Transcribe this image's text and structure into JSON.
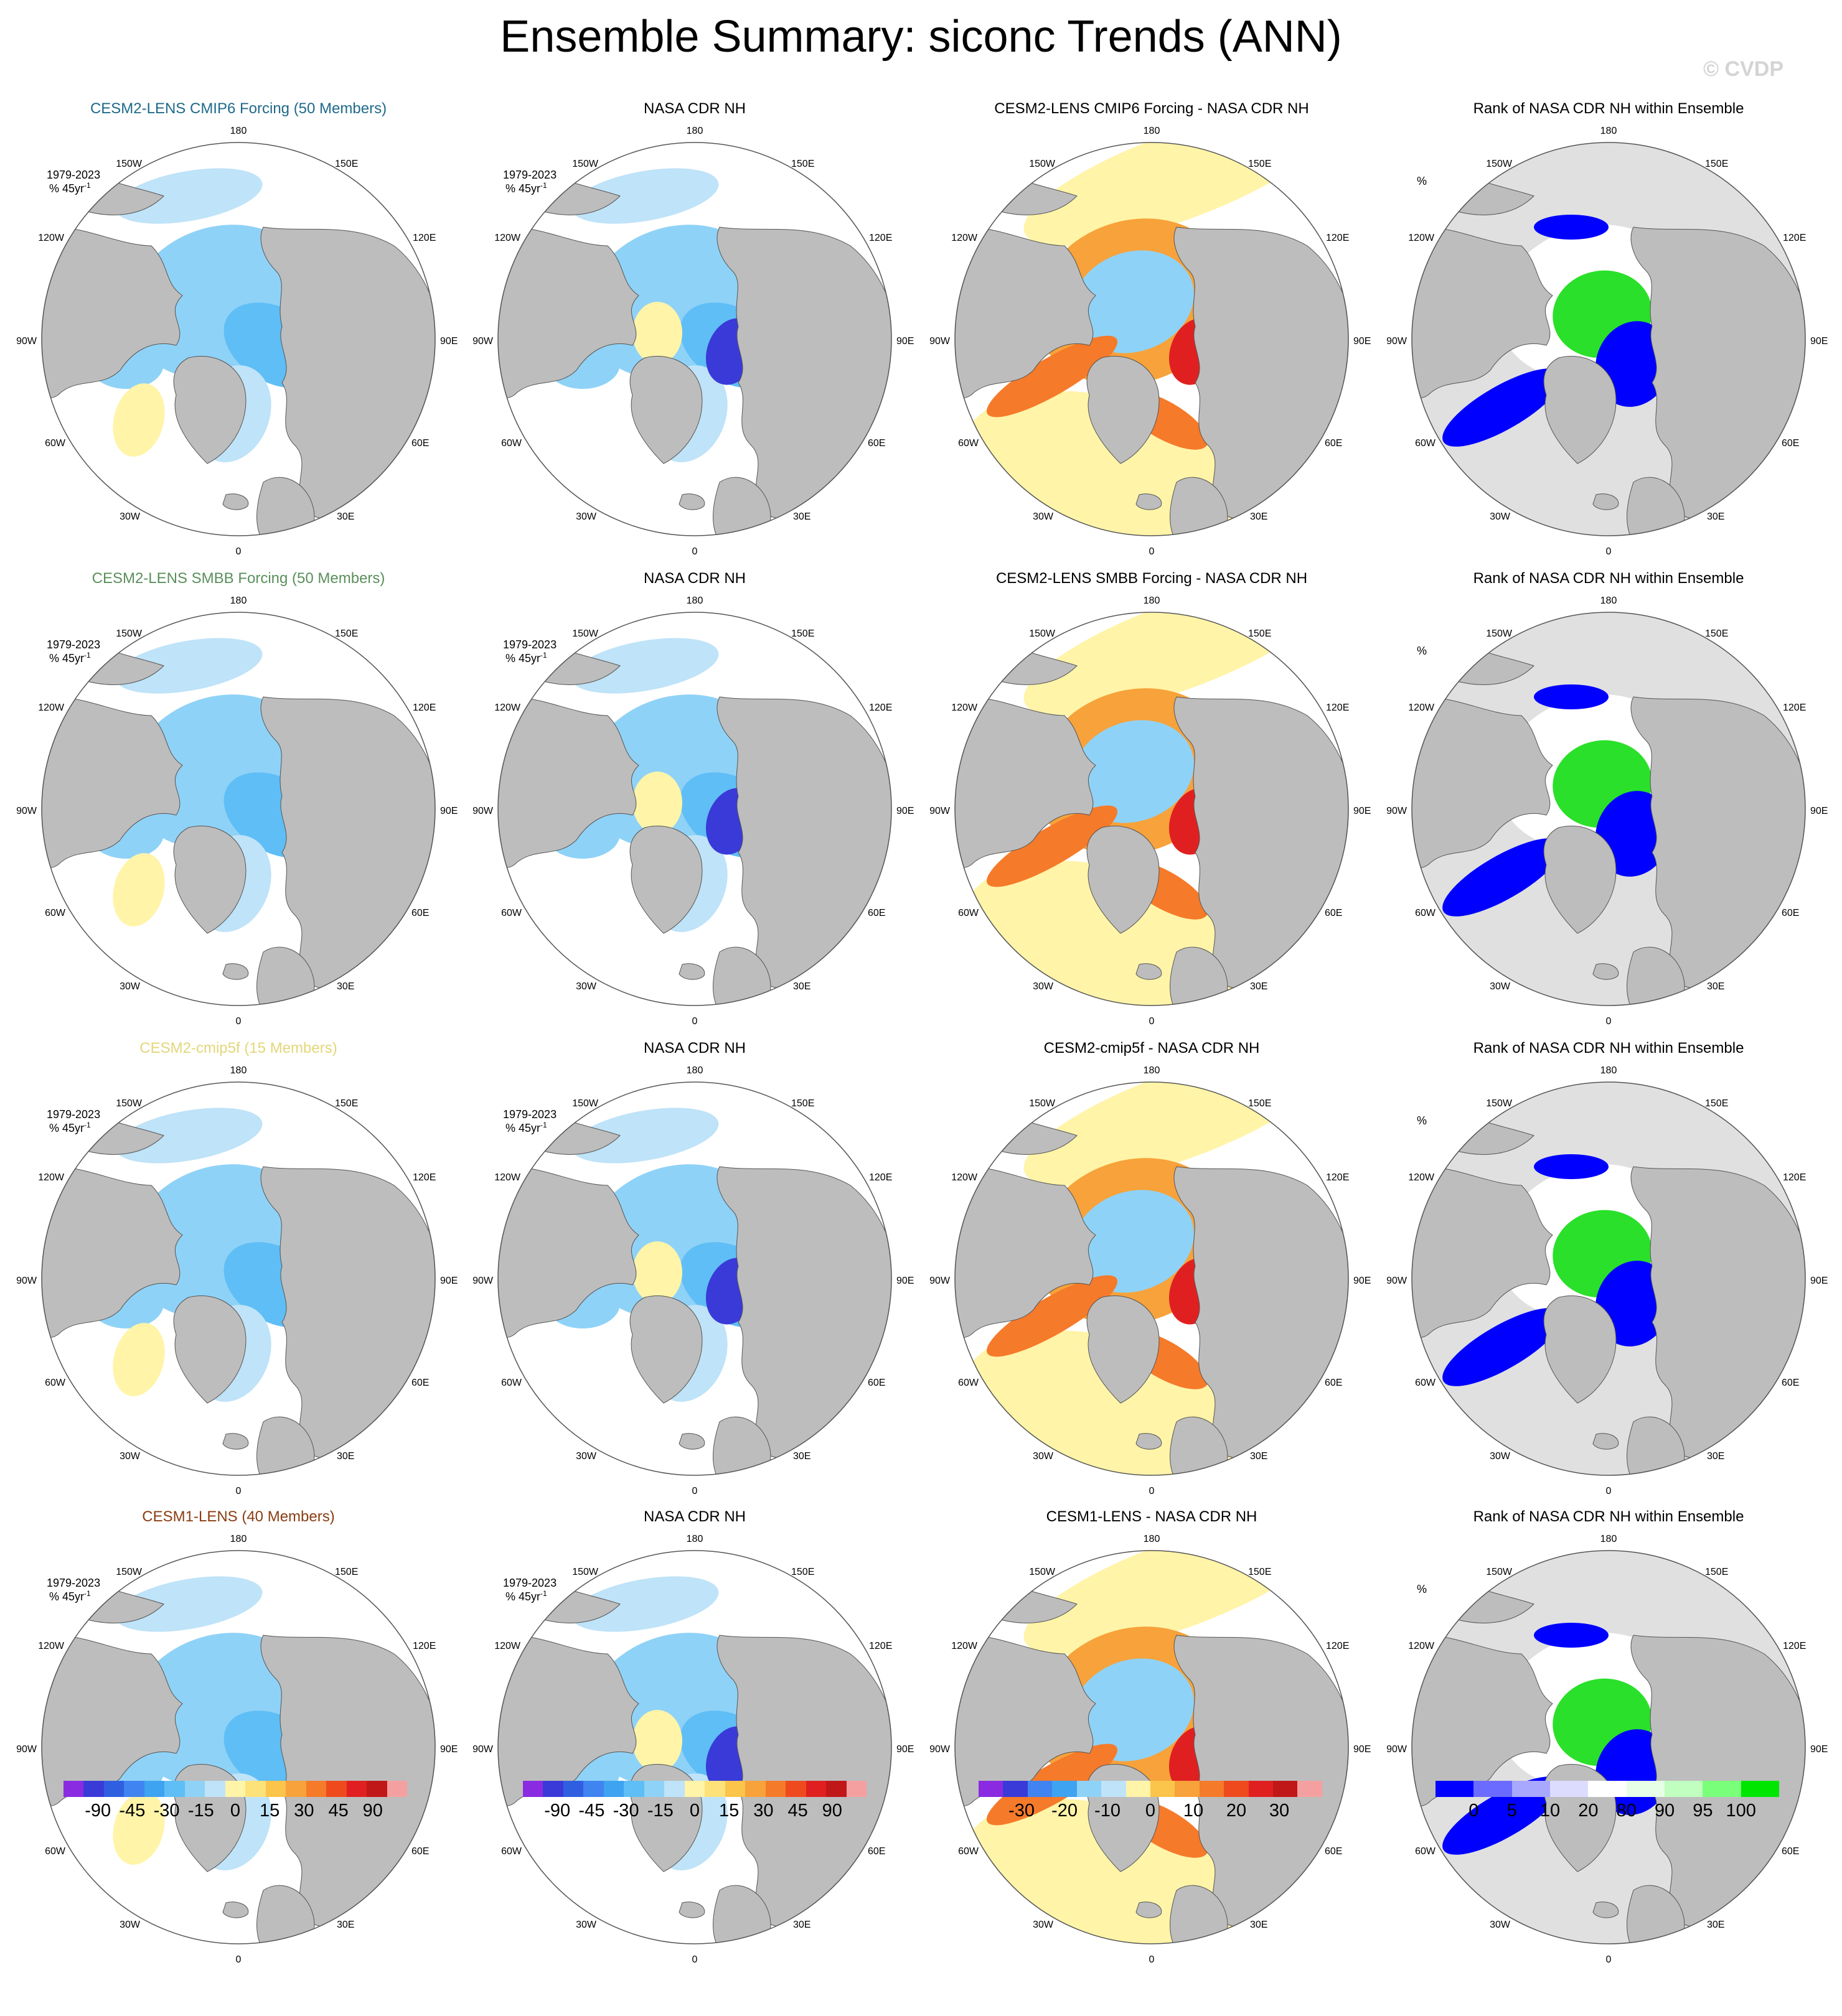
{
  "title": "Ensemble Summary: siconc Trends (ANN)",
  "watermark": "© CVDP",
  "colors": {
    "land": "#bdbdbd",
    "ocean": "#ffffff",
    "rank_ocean": "#e0e0e0",
    "coast": "#555555"
  },
  "rows": [
    {
      "ensemble": {
        "title": "CESM2-LENS CMIP6 Forcing (50 Members)",
        "color": "#1f6a8a",
        "period": "1979-2023",
        "units": "% 45yr"
      },
      "obs": {
        "title": "NASA CDR NH",
        "period": "1979-2023",
        "units": "% 45yr"
      },
      "diff": {
        "title": "CESM2-LENS CMIP6 Forcing - NASA CDR NH"
      },
      "rank": {
        "title": "Rank of NASA CDR NH within Ensemble",
        "units": "%"
      }
    },
    {
      "ensemble": {
        "title": "CESM2-LENS SMBB Forcing (50 Members)",
        "color": "#5a8f5c",
        "period": "1979-2023",
        "units": "% 45yr"
      },
      "obs": {
        "title": "NASA CDR NH",
        "period": "1979-2023",
        "units": "% 45yr"
      },
      "diff": {
        "title": "CESM2-LENS SMBB Forcing - NASA CDR NH"
      },
      "rank": {
        "title": "Rank of NASA CDR NH within Ensemble",
        "units": "%"
      }
    },
    {
      "ensemble": {
        "title": "CESM2-cmip5f (15 Members)",
        "color": "#e3d77a",
        "period": "1979-2023",
        "units": "% 45yr"
      },
      "obs": {
        "title": "NASA CDR NH",
        "period": "1979-2023",
        "units": "% 45yr"
      },
      "diff": {
        "title": "CESM2-cmip5f - NASA CDR NH"
      },
      "rank": {
        "title": "Rank of NASA CDR NH within Ensemble",
        "units": "%"
      }
    },
    {
      "ensemble": {
        "title": "CESM1-LENS (40 Members)",
        "color": "#8b3d12",
        "period": "1979-2023",
        "units": "% 45yr"
      },
      "obs": {
        "title": "NASA CDR NH",
        "period": "1979-2023",
        "units": "% 45yr"
      },
      "diff": {
        "title": "CESM1-LENS - NASA CDR NH"
      },
      "rank": {
        "title": "Rank of NASA CDR NH within Ensemble",
        "units": "%"
      }
    }
  ],
  "units_exponent": "-1",
  "longitude_labels": {
    "top": "180",
    "bottom": "0",
    "upper_left": "150W",
    "upper_right": "150E",
    "left_upper": "120W",
    "right_upper": "120E",
    "left_mid": "90W",
    "right_mid": "90E",
    "left_lower": "60W",
    "right_lower": "60E",
    "lower_left": "30W",
    "lower_right": "30E"
  },
  "colorbars": {
    "trend": {
      "labels": [
        "-90",
        "-45",
        "-30",
        "-15",
        "0",
        "15",
        "30",
        "45",
        "90"
      ],
      "colors": [
        "#8a2be2",
        "#3a3ad8",
        "#2f5fe0",
        "#3f84f0",
        "#3ea3f0",
        "#5fbef5",
        "#8fd2f7",
        "#bfe3f8",
        "#fff4a8",
        "#fde27a",
        "#fbc44a",
        "#f7a23a",
        "#f57a2a",
        "#ee4a1e",
        "#e02020",
        "#c01818",
        "#f5a0a0"
      ]
    },
    "diff": {
      "labels": [
        "-30",
        "-20",
        "-10",
        "0",
        "10",
        "20",
        "30"
      ],
      "colors": [
        "#8a2be2",
        "#3a3ad8",
        "#3f84f0",
        "#3ea3f0",
        "#8fd2f7",
        "#bfe3f8",
        "#fff4a8",
        "#fbc44a",
        "#f7a23a",
        "#f57a2a",
        "#ee4a1e",
        "#e02020",
        "#c01818",
        "#f5a0a0"
      ]
    },
    "rank": {
      "labels": [
        "0",
        "5",
        "10",
        "20",
        "80",
        "90",
        "95",
        "100"
      ],
      "colors": [
        "#0000ff",
        "#6b6bff",
        "#a8a8ff",
        "#dcdcff",
        "#ffffff",
        "#e6ffe6",
        "#c0ffc0",
        "#7aff7a",
        "#00e600"
      ]
    }
  }
}
